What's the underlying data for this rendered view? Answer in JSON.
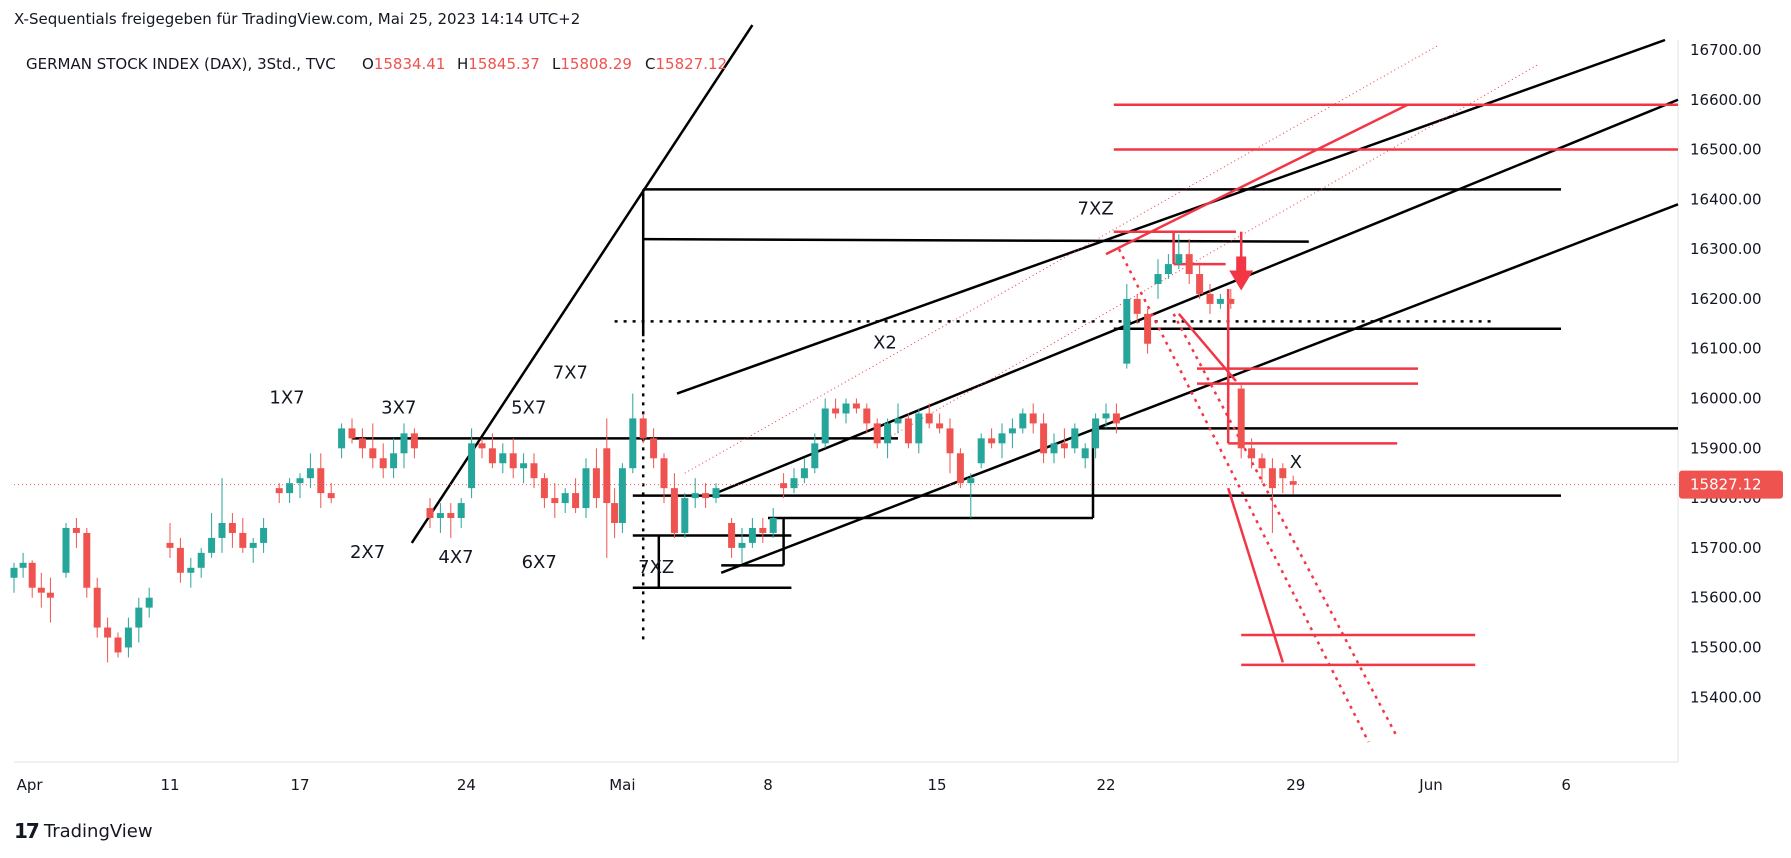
{
  "header": {
    "caption": "X-Sequentials freigegeben für TradingView.com, Mai 25, 2023 14:14 UTC+2"
  },
  "footer": {
    "brand": "TradingView",
    "logo_icon": "tradingview-logo-icon"
  },
  "chart_data": {
    "type": "candlestick",
    "title": "GERMAN STOCK INDEX (DAX), 3Std., TVC",
    "ohlc_labels": {
      "o": "O",
      "h": "H",
      "l": "L",
      "c": "C"
    },
    "ohlc": {
      "open": "15834.41",
      "high": "15845.37",
      "low": "15808.29",
      "close": "15827.12"
    },
    "last_price_label": "15827.12",
    "ylim": [
      15270,
      16720
    ],
    "xlim": [
      0,
      64
    ],
    "y_ticks": [
      "16700.00",
      "16600.00",
      "16500.00",
      "16400.00",
      "16300.00",
      "16200.00",
      "16100.00",
      "16000.00",
      "15900.00",
      "15800.00",
      "15700.00",
      "15600.00",
      "15500.00",
      "15400.00"
    ],
    "x_ticks": [
      {
        "label": "Apr",
        "x": 0.6
      },
      {
        "label": "11",
        "x": 6
      },
      {
        "label": "17",
        "x": 11
      },
      {
        "label": "24",
        "x": 17.4
      },
      {
        "label": "Mai",
        "x": 23.4
      },
      {
        "label": "8",
        "x": 29
      },
      {
        "label": "15",
        "x": 35.5
      },
      {
        "label": "22",
        "x": 42
      },
      {
        "label": "29",
        "x": 49.3
      },
      {
        "label": "Jun",
        "x": 54.5
      },
      {
        "label": "6",
        "x": 59.7
      }
    ],
    "colors": {
      "up": "#26a69a",
      "down": "#ef5350",
      "annotation_red": "#f23645",
      "annotation_black": "#000000"
    },
    "candles": [
      [
        0.0,
        15640,
        15670,
        15610,
        15660
      ],
      [
        0.35,
        15660,
        15690,
        15640,
        15670
      ],
      [
        0.7,
        15670,
        15675,
        15600,
        15620
      ],
      [
        1.05,
        15620,
        15650,
        15580,
        15610
      ],
      [
        1.4,
        15610,
        15640,
        15550,
        15600
      ],
      [
        2.0,
        15650,
        15750,
        15640,
        15740
      ],
      [
        2.4,
        15740,
        15760,
        15700,
        15730
      ],
      [
        2.8,
        15730,
        15740,
        15600,
        15620
      ],
      [
        3.2,
        15620,
        15640,
        15520,
        15540
      ],
      [
        3.6,
        15540,
        15560,
        15470,
        15520
      ],
      [
        4.0,
        15520,
        15530,
        15480,
        15490
      ],
      [
        4.4,
        15500,
        15560,
        15480,
        15540
      ],
      [
        4.8,
        15540,
        15600,
        15510,
        15580
      ],
      [
        5.2,
        15580,
        15620,
        15560,
        15600
      ],
      [
        6.0,
        15710,
        15750,
        15680,
        15700
      ],
      [
        6.4,
        15700,
        15720,
        15630,
        15650
      ],
      [
        6.8,
        15650,
        15680,
        15620,
        15660
      ],
      [
        7.2,
        15660,
        15700,
        15640,
        15690
      ],
      [
        7.6,
        15690,
        15770,
        15680,
        15720
      ],
      [
        8.0,
        15720,
        15840,
        15690,
        15750
      ],
      [
        8.4,
        15750,
        15770,
        15700,
        15730
      ],
      [
        8.8,
        15730,
        15760,
        15690,
        15700
      ],
      [
        9.2,
        15700,
        15720,
        15670,
        15710
      ],
      [
        9.6,
        15710,
        15760,
        15690,
        15740
      ],
      [
        10.2,
        15820,
        15830,
        15790,
        15810
      ],
      [
        10.6,
        15810,
        15840,
        15790,
        15830
      ],
      [
        11.0,
        15830,
        15850,
        15800,
        15840
      ],
      [
        11.4,
        15840,
        15890,
        15820,
        15860
      ],
      [
        11.8,
        15860,
        15890,
        15780,
        15810
      ],
      [
        12.2,
        15810,
        15830,
        15790,
        15800
      ],
      [
        12.6,
        15900,
        15950,
        15880,
        15940
      ],
      [
        13.0,
        15940,
        15960,
        15910,
        15920
      ],
      [
        13.4,
        15920,
        15940,
        15880,
        15900
      ],
      [
        13.8,
        15900,
        15950,
        15860,
        15880
      ],
      [
        14.2,
        15880,
        15910,
        15840,
        15860
      ],
      [
        14.6,
        15860,
        15920,
        15840,
        15890
      ],
      [
        15.0,
        15890,
        15950,
        15860,
        15930
      ],
      [
        15.4,
        15930,
        15940,
        15880,
        15900
      ],
      [
        16.0,
        15780,
        15800,
        15740,
        15760
      ],
      [
        16.4,
        15760,
        15790,
        15730,
        15770
      ],
      [
        16.8,
        15770,
        15790,
        15720,
        15760
      ],
      [
        17.2,
        15760,
        15800,
        15740,
        15790
      ],
      [
        17.6,
        15820,
        15940,
        15800,
        15910
      ],
      [
        18.0,
        15910,
        15920,
        15880,
        15900
      ],
      [
        18.4,
        15900,
        15930,
        15860,
        15870
      ],
      [
        18.8,
        15870,
        15910,
        15850,
        15890
      ],
      [
        19.2,
        15890,
        15920,
        15840,
        15860
      ],
      [
        19.6,
        15860,
        15890,
        15830,
        15870
      ],
      [
        20.0,
        15870,
        15890,
        15820,
        15840
      ],
      [
        20.4,
        15840,
        15850,
        15780,
        15800
      ],
      [
        20.8,
        15800,
        15830,
        15760,
        15790
      ],
      [
        21.2,
        15790,
        15820,
        15770,
        15810
      ],
      [
        21.6,
        15810,
        15840,
        15770,
        15780
      ],
      [
        22.0,
        15780,
        15880,
        15760,
        15860
      ],
      [
        22.4,
        15860,
        15900,
        15780,
        15800
      ],
      [
        22.8,
        15900,
        15960,
        15680,
        15790
      ],
      [
        23.1,
        15790,
        15820,
        15720,
        15750
      ],
      [
        23.4,
        15750,
        15870,
        15730,
        15860
      ],
      [
        23.8,
        15860,
        16010,
        15850,
        15960
      ],
      [
        24.2,
        15960,
        15970,
        15910,
        15920
      ],
      [
        24.6,
        15920,
        15940,
        15860,
        15880
      ],
      [
        25.0,
        15880,
        15890,
        15790,
        15820
      ],
      [
        25.4,
        15820,
        15850,
        15720,
        15730
      ],
      [
        25.8,
        15730,
        15810,
        15720,
        15800
      ],
      [
        26.2,
        15800,
        15840,
        15780,
        15810
      ],
      [
        26.6,
        15810,
        15830,
        15780,
        15800
      ],
      [
        27.0,
        15800,
        15830,
        15790,
        15820
      ],
      [
        27.6,
        15750,
        15760,
        15680,
        15700
      ],
      [
        28.0,
        15700,
        15740,
        15670,
        15710
      ],
      [
        28.4,
        15710,
        15760,
        15700,
        15740
      ],
      [
        28.8,
        15740,
        15760,
        15710,
        15730
      ],
      [
        29.2,
        15730,
        15780,
        15720,
        15760
      ],
      [
        29.6,
        15830,
        15850,
        15800,
        15820
      ],
      [
        30.0,
        15820,
        15860,
        15810,
        15840
      ],
      [
        30.4,
        15840,
        15880,
        15830,
        15860
      ],
      [
        30.8,
        15860,
        15930,
        15850,
        15910
      ],
      [
        31.2,
        15910,
        16000,
        15900,
        15980
      ],
      [
        31.6,
        15980,
        16000,
        15960,
        15970
      ],
      [
        32.0,
        15970,
        16000,
        15950,
        15990
      ],
      [
        32.4,
        15990,
        16000,
        15970,
        15980
      ],
      [
        32.8,
        15980,
        15990,
        15930,
        15950
      ],
      [
        33.2,
        15950,
        15960,
        15900,
        15910
      ],
      [
        33.6,
        15910,
        15960,
        15880,
        15950
      ],
      [
        34.0,
        15950,
        15990,
        15930,
        15960
      ],
      [
        34.4,
        15960,
        15970,
        15900,
        15910
      ],
      [
        34.8,
        15910,
        15980,
        15890,
        15970
      ],
      [
        35.2,
        15970,
        15990,
        15940,
        15950
      ],
      [
        35.6,
        15950,
        15970,
        15930,
        15940
      ],
      [
        36.0,
        15940,
        15960,
        15850,
        15890
      ],
      [
        36.4,
        15890,
        15900,
        15820,
        15830
      ],
      [
        36.8,
        15830,
        15850,
        15760,
        15840
      ],
      [
        37.2,
        15870,
        15930,
        15860,
        15920
      ],
      [
        37.6,
        15920,
        15940,
        15900,
        15910
      ],
      [
        38.0,
        15910,
        15950,
        15880,
        15930
      ],
      [
        38.4,
        15930,
        15960,
        15900,
        15940
      ],
      [
        38.8,
        15940,
        15980,
        15930,
        15970
      ],
      [
        39.2,
        15970,
        15990,
        15930,
        15950
      ],
      [
        39.6,
        15950,
        15970,
        15870,
        15890
      ],
      [
        40.0,
        15890,
        15930,
        15870,
        15910
      ],
      [
        40.4,
        15910,
        15940,
        15880,
        15900
      ],
      [
        40.8,
        15900,
        15950,
        15890,
        15940
      ],
      [
        41.2,
        15880,
        15910,
        15860,
        15900
      ],
      [
        41.6,
        15900,
        15970,
        15880,
        15960
      ],
      [
        42.0,
        15960,
        15990,
        15940,
        15970
      ],
      [
        42.4,
        15970,
        15990,
        15930,
        15950
      ],
      [
        42.8,
        16070,
        16230,
        16060,
        16200
      ],
      [
        43.2,
        16200,
        16210,
        16150,
        16170
      ],
      [
        43.6,
        16170,
        16180,
        16090,
        16110
      ],
      [
        44.0,
        16230,
        16280,
        16200,
        16250
      ],
      [
        44.4,
        16250,
        16290,
        16240,
        16270
      ],
      [
        44.8,
        16270,
        16330,
        16260,
        16290
      ],
      [
        45.2,
        16290,
        16320,
        16230,
        16250
      ],
      [
        45.6,
        16250,
        16270,
        16200,
        16210
      ],
      [
        46.0,
        16210,
        16230,
        16170,
        16190
      ],
      [
        46.4,
        16190,
        16210,
        16180,
        16200
      ],
      [
        46.8,
        16200,
        16220,
        16180,
        16190
      ],
      [
        47.2,
        16020,
        16030,
        15880,
        15900
      ],
      [
        47.6,
        15900,
        15920,
        15860,
        15880
      ],
      [
        48.0,
        15880,
        15890,
        15830,
        15860
      ],
      [
        48.4,
        15860,
        15880,
        15730,
        15820
      ],
      [
        48.8,
        15860,
        15870,
        15810,
        15840
      ],
      [
        49.2,
        15834,
        15845,
        15808,
        15827
      ]
    ],
    "annotations": [
      {
        "text": "1X7",
        "x": 10.5,
        "y": 15990
      },
      {
        "text": "2X7",
        "x": 13.6,
        "y": 15680
      },
      {
        "text": "3X7",
        "x": 14.8,
        "y": 15970
      },
      {
        "text": "4X7",
        "x": 17.0,
        "y": 15670
      },
      {
        "text": "5X7",
        "x": 19.8,
        "y": 15970
      },
      {
        "text": "6X7",
        "x": 20.2,
        "y": 15660
      },
      {
        "text": "7X7",
        "x": 21.4,
        "y": 16040
      },
      {
        "text": "7XZ",
        "x": 24.7,
        "y": 15650
      },
      {
        "text": "X2",
        "x": 33.5,
        "y": 16100
      },
      {
        "text": "7XZ",
        "x": 41.6,
        "y": 16370
      },
      {
        "text": "X",
        "x": 49.3,
        "y": 15860
      }
    ],
    "xlabel": "",
    "ylabel": ""
  }
}
